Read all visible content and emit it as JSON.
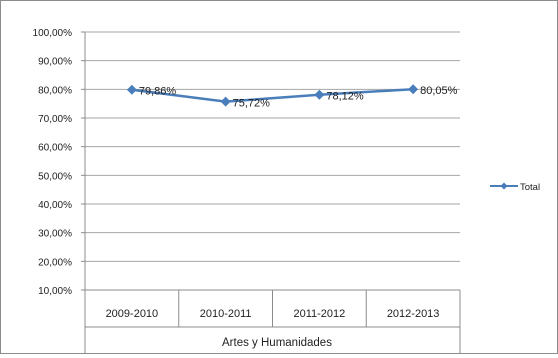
{
  "chart_data": {
    "type": "line",
    "categories": [
      "2009-2010",
      "2010-2011",
      "2011-2012",
      "2012-2013"
    ],
    "group_label": "Artes y Humanidades",
    "series": [
      {
        "name": "Total",
        "values": [
          79.86,
          75.72,
          78.12,
          80.05
        ],
        "labels": [
          "79,86%",
          "75,72%",
          "78,12%",
          "80,05%"
        ]
      }
    ],
    "y_ticks": [
      "10,00%",
      "20,00%",
      "30,00%",
      "40,00%",
      "50,00%",
      "60,00%",
      "70,00%",
      "80,00%",
      "90,00%",
      "100,00%"
    ],
    "ylim": [
      10,
      100
    ],
    "grid": true,
    "legend_position": "right",
    "colors": {
      "series": "#4a7ebb",
      "gridline": "#a6a6a6",
      "axis": "#8c8c8c",
      "text": "#222222"
    }
  }
}
